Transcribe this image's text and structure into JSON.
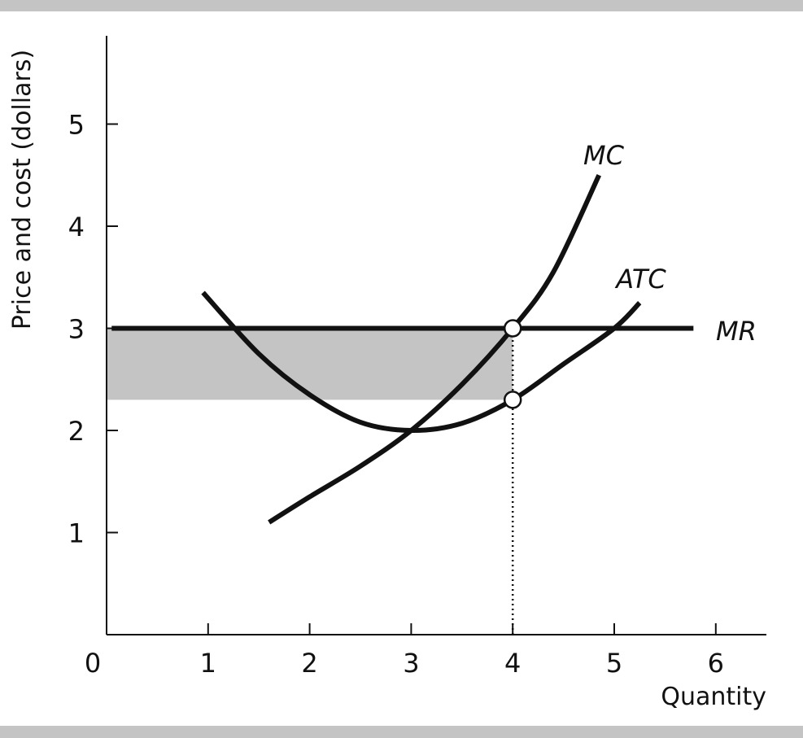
{
  "colors": {
    "band": "#c4c4c4",
    "profit_area": "#c4c4c4",
    "line": "#111111"
  },
  "chart_data": {
    "type": "line",
    "xlabel": "Quantity",
    "ylabel": "Price and cost (dollars)",
    "origin_label": "0",
    "xlim": [
      0,
      6.5
    ],
    "ylim": [
      0,
      6
    ],
    "x_ticks": [
      1,
      2,
      3,
      4,
      5,
      6
    ],
    "y_ticks": [
      1,
      2,
      3,
      4,
      5
    ],
    "grid": false,
    "legend": "none",
    "series": [
      {
        "name": "MC",
        "points": [
          [
            1.6,
            1.1
          ],
          [
            2.0,
            1.35
          ],
          [
            2.5,
            1.65
          ],
          [
            3.0,
            2.0
          ],
          [
            3.5,
            2.45
          ],
          [
            4.0,
            3.0
          ],
          [
            4.4,
            3.55
          ],
          [
            4.85,
            4.5
          ]
        ]
      },
      {
        "name": "ATC",
        "points": [
          [
            0.95,
            3.35
          ],
          [
            1.5,
            2.75
          ],
          [
            2.0,
            2.35
          ],
          [
            2.5,
            2.08
          ],
          [
            3.0,
            2.0
          ],
          [
            3.5,
            2.07
          ],
          [
            4.0,
            2.3
          ],
          [
            4.5,
            2.65
          ],
          [
            5.0,
            3.0
          ],
          [
            5.25,
            3.25
          ]
        ]
      },
      {
        "name": "MR",
        "points": [
          [
            0.05,
            3.0
          ],
          [
            5.78,
            3.0
          ]
        ]
      }
    ],
    "shaded_region": {
      "x": [
        0,
        4
      ],
      "y": [
        2.3,
        3.0
      ]
    },
    "markers": [
      [
        4,
        3.0
      ],
      [
        4,
        2.3
      ]
    ],
    "dotted_line": {
      "x": 4,
      "y_from": 0,
      "y_to": 3.0
    }
  }
}
